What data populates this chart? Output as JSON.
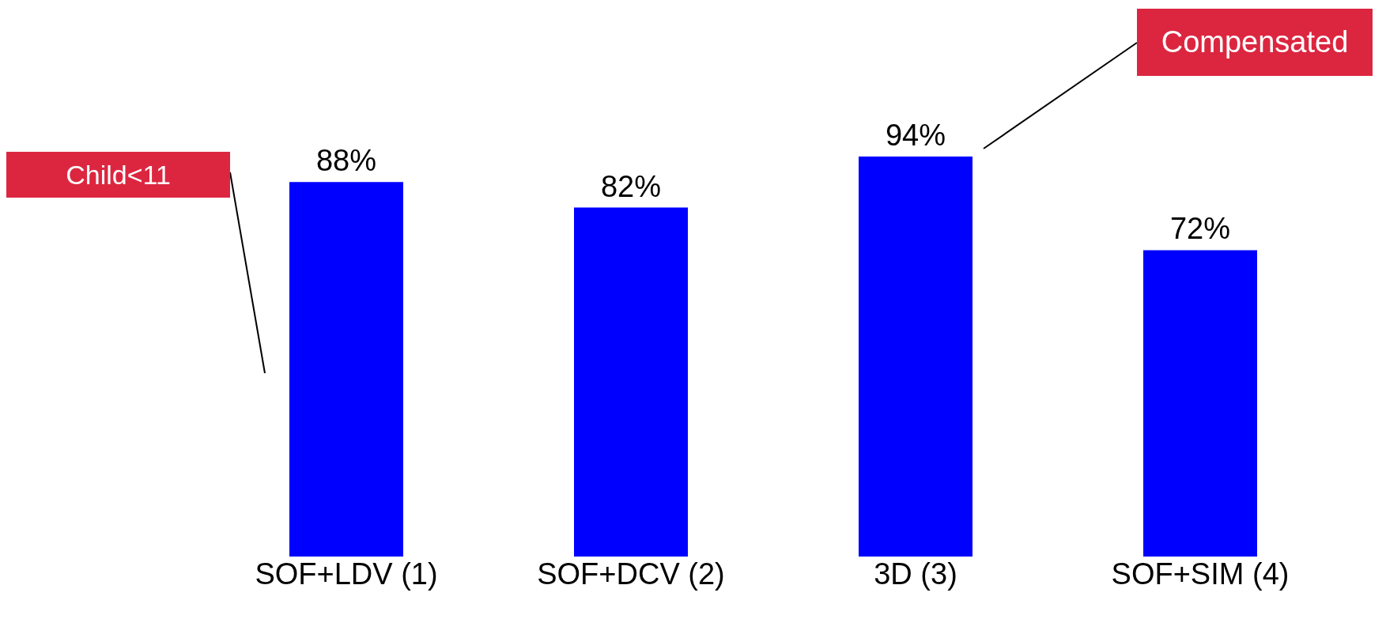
{
  "chart_data": {
    "type": "bar",
    "categories": [
      "SOF+LDV (1)",
      "SOF+DCV (2)",
      "3D (3)",
      "SOF+SIM (4)"
    ],
    "values": [
      88,
      82,
      94,
      72
    ],
    "value_labels": [
      "88%",
      "82%",
      "94%",
      "72%"
    ],
    "color": "#0000ff",
    "annotations": [
      "Child<11",
      "Compensated"
    ]
  }
}
